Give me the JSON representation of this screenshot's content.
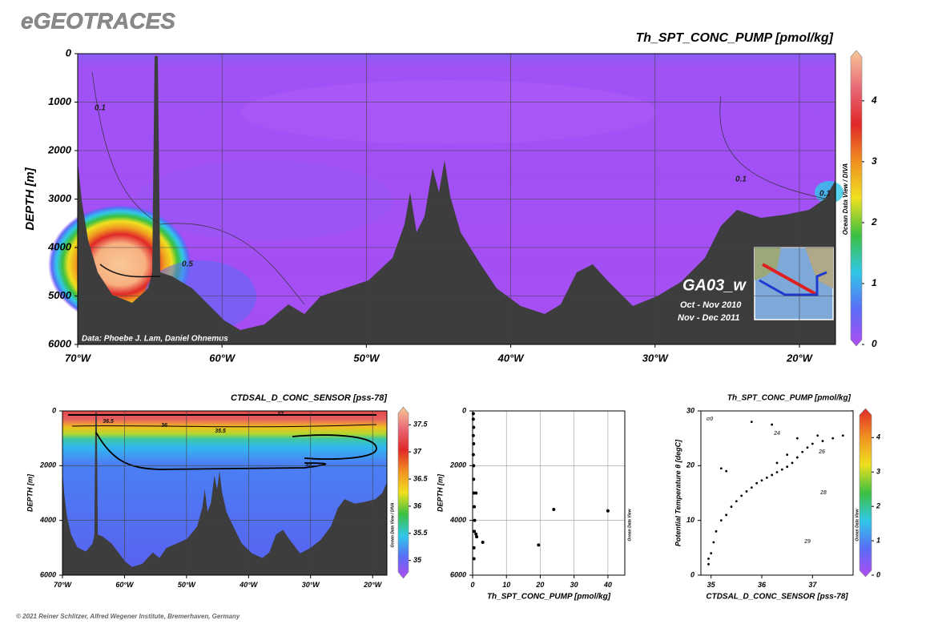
{
  "header": {
    "logo": "eGEOTRACES"
  },
  "labels": {
    "credit": "Data: Phoebe J. Lam, Daniel Ohnemus",
    "section": "GA03_w",
    "cruise_1": "Oct - Nov 2010",
    "cruise_2": "Nov - Dec 2011"
  },
  "footer": {
    "copyright": "© 2021 Reiner Schlitzer, Alfred Wegener Institute, Bremerhaven, Germany"
  },
  "chart_data": [
    {
      "type": "section",
      "title": "Th_SPT_CONC_PUMP [pmol/kg]",
      "ylabel": "DEPTH [m]",
      "xlim": [
        -70,
        -17.5
      ],
      "xticks": [
        {
          "value": -70,
          "label": "70°W"
        },
        {
          "value": -60,
          "label": "60°W"
        },
        {
          "value": -50,
          "label": "50°W"
        },
        {
          "value": -40,
          "label": "40°W"
        },
        {
          "value": -30,
          "label": "30°W"
        },
        {
          "value": -20,
          "label": "20°W"
        }
      ],
      "ylim": [
        0,
        6000
      ],
      "yticks": [
        0,
        1000,
        2000,
        3000,
        4000,
        5000,
        6000
      ],
      "y_inverted": true,
      "grid": true,
      "colorbar": {
        "lim": [
          0,
          4.8
        ],
        "ticks": [
          0,
          1,
          2,
          3,
          4
        ],
        "colors": [
          "#b04cf4",
          "#5a6cf6",
          "#30c8e8",
          "#3cc040",
          "#f0e020",
          "#f09020",
          "#e02828",
          "#e86a78",
          "#f8c898"
        ],
        "side_label": "Ocean Data View / DIVA"
      },
      "annotations": [
        "0.1",
        "0.1",
        "0.1",
        "0.5"
      ]
    },
    {
      "type": "section",
      "title": "CTDSAL_D_CONC_SENSOR [pss-78]",
      "ylabel": "DEPTH [m]",
      "xlim": [
        -70,
        -17.7
      ],
      "xticks": [
        {
          "value": -70,
          "label": "70°W"
        },
        {
          "value": -60,
          "label": "60°W"
        },
        {
          "value": -50,
          "label": "50°W"
        },
        {
          "value": -40,
          "label": "40°W"
        },
        {
          "value": -30,
          "label": "30°W"
        },
        {
          "value": -20,
          "label": "20°W"
        }
      ],
      "ylim": [
        0,
        6000
      ],
      "yticks": [
        0,
        2000,
        4000,
        6000
      ],
      "y_inverted": true,
      "grid": true,
      "colorbar": {
        "lim": [
          34.7,
          37.8
        ],
        "ticks": [
          35,
          35.5,
          36,
          36.5,
          37,
          37.5
        ],
        "colors": [
          "#b04cf4",
          "#5a6cf6",
          "#30c8e8",
          "#3cc040",
          "#f0e020",
          "#f09020",
          "#e02828",
          "#e86a78",
          "#f8c898"
        ],
        "side_label": "Ocean Data View / DIVA"
      },
      "annotations": [
        "36.5",
        "36",
        "37",
        "35.5",
        "35"
      ]
    },
    {
      "type": "scatter",
      "xlabel": "Th_SPT_CONC_PUMP [pmol/kg]",
      "ylabel": "DEPTH [m]",
      "xlim": [
        0,
        45
      ],
      "xticks": [
        0,
        10,
        20,
        30,
        40
      ],
      "ylim": [
        0,
        6000
      ],
      "yticks": [
        0,
        2000,
        4000,
        6000
      ],
      "y_inverted": true,
      "grid": true,
      "color": "#000000",
      "side_label": "Ocean Data View",
      "x": [
        0.2,
        0.2,
        0.3,
        0.2,
        0.3,
        0.2,
        0.3,
        0.3,
        0.4,
        1,
        0.5,
        0.6,
        0.5,
        1,
        1.2,
        0.4,
        0.4,
        3,
        19.5,
        24,
        40
      ],
      "values": [
        100,
        300,
        600,
        900,
        1200,
        1600,
        2000,
        2500,
        3000,
        3000,
        3500,
        4000,
        4400,
        4500,
        4600,
        5000,
        5400,
        4800,
        4900,
        3600,
        3650
      ]
    },
    {
      "type": "scatter",
      "title": "Th_SPT_CONC_PUMP [pmol/kg]",
      "xlabel": "CTDSAL_D_CONC_SENSOR [pss-78]",
      "ylabel": "Potential Temperature θ [degC]",
      "xlim": [
        34.8,
        37.8
      ],
      "xticks": [
        35,
        36,
        37
      ],
      "ylim": [
        0,
        30
      ],
      "yticks": [
        0,
        10,
        20,
        30
      ],
      "grid": false,
      "color": "#000000",
      "colorbar": {
        "lim": [
          0,
          4.8
        ],
        "ticks": [
          0,
          1,
          2,
          3,
          4
        ],
        "colors": [
          "#b04cf4",
          "#5a6cf6",
          "#30c8e8",
          "#3cc040",
          "#f0e020",
          "#f09020",
          "#e02828"
        ],
        "side_label": "Ocean Data View"
      },
      "annotations": [
        "σ0",
        "24",
        "26",
        "28",
        "29"
      ],
      "x": [
        34.95,
        34.95,
        35,
        35.05,
        35.1,
        35.2,
        35.3,
        35.4,
        35.5,
        35.6,
        35.7,
        35.8,
        35.9,
        36,
        36.1,
        36.2,
        36.3,
        36.4,
        36.5,
        36.6,
        36.7,
        36.8,
        36.9,
        37,
        37.2,
        37.4,
        37.6,
        35.3,
        35.2,
        36.2,
        35.8,
        36.7,
        36.5,
        36.3,
        37.1
      ],
      "values": [
        2,
        3,
        4,
        6,
        8,
        10,
        11,
        12.5,
        13.5,
        14.5,
        15.3,
        16,
        16.8,
        17.3,
        17.8,
        18.3,
        18.8,
        19.3,
        19.8,
        20.5,
        21.5,
        22.5,
        23.3,
        24,
        24.5,
        25,
        25.5,
        19,
        19.5,
        27.5,
        28,
        25,
        22,
        20.5,
        25.5
      ]
    }
  ]
}
